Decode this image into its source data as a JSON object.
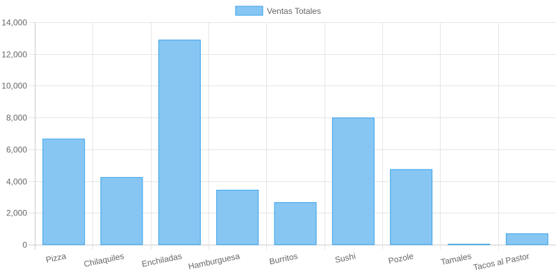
{
  "chart_data": {
    "type": "bar",
    "categories": [
      "Pizza",
      "Chilaquiles",
      "Enchiladas",
      "Hamburguesa",
      "Burritos",
      "Sushi",
      "Pozole",
      "Tamales",
      "Tacos al Pastor"
    ],
    "series": [
      {
        "name": "Ventas Totales",
        "values": [
          6650,
          4230,
          12880,
          3430,
          2650,
          7980,
          4730,
          30,
          690
        ]
      }
    ],
    "ylim": [
      0,
      14000
    ],
    "y_ticks": [
      "0",
      "2,000",
      "4,000",
      "6,000",
      "8,000",
      "10,000",
      "12,000",
      "14,000"
    ],
    "grid": true,
    "legend_position": "top",
    "colors": {
      "bar_fill": "#87c6f3",
      "bar_stroke": "#36a2eb",
      "grid": "#e5e5e5",
      "axis": "#cccccc",
      "text": "#666666"
    }
  }
}
